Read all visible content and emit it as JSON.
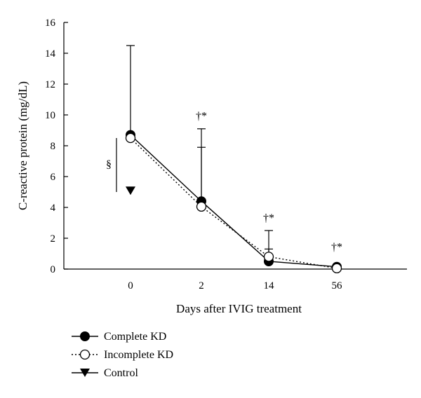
{
  "chart_data": {
    "type": "line",
    "xlabel": "Days after IVIG treatment",
    "ylabel": "C-reactive protein (mg/dL)",
    "categories": [
      "0",
      "2",
      "14",
      "56"
    ],
    "ylim": [
      0,
      16
    ],
    "yticks": [
      "0",
      "2",
      "4",
      "6",
      "8",
      "10",
      "12",
      "14",
      "16"
    ],
    "series": [
      {
        "name": "Complete KD",
        "marker": "filled-circle",
        "line": "solid",
        "values": [
          8.7,
          4.4,
          0.5,
          0.15
        ],
        "error_upper": [
          14.5,
          7.9,
          1.3,
          null
        ]
      },
      {
        "name": "Incomplete KD",
        "marker": "open-circle",
        "line": "dotted",
        "values": [
          8.5,
          4.05,
          0.8,
          0.05
        ],
        "error_upper": [
          null,
          9.1,
          2.5,
          null
        ]
      },
      {
        "name": "Control",
        "marker": "filled-triangle-down",
        "line": "solid",
        "values": [
          4.9,
          null,
          null,
          null
        ],
        "error_upper": [
          null,
          null,
          null,
          null
        ]
      }
    ],
    "annotations": [
      {
        "text": "§",
        "category": "0",
        "y": 6.8
      },
      {
        "text": "†*",
        "category": "2",
        "y": 9.7
      },
      {
        "text": "†*",
        "category": "14",
        "y": 3.1
      },
      {
        "text": "†*",
        "category": "56",
        "y": 1.2
      }
    ],
    "legend_position": "bottom-left",
    "grid": false
  },
  "colors": {
    "ink": "#000000",
    "background": "#ffffff"
  }
}
